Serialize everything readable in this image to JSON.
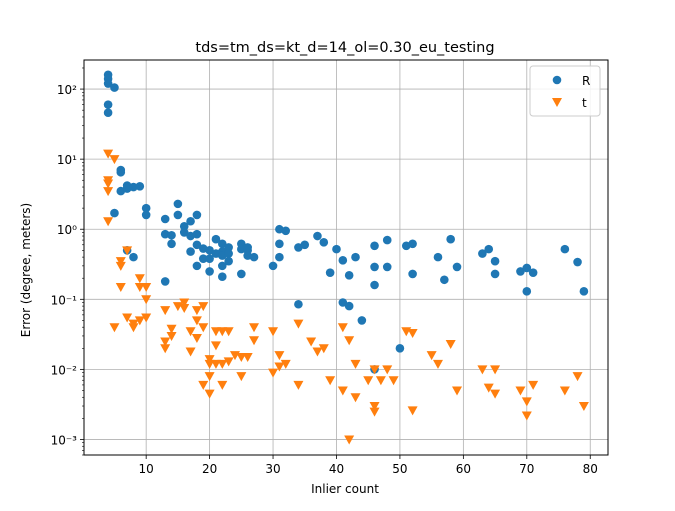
{
  "chart_data": {
    "type": "scatter",
    "title": "tds=tm_ds=kt_d=14_ol=0.30_eu_testing",
    "xlabel": "Inlier count",
    "ylabel": "Error (degree, meters)",
    "xlim": [
      0.2,
      82.8
    ],
    "ylim": [
      0.0006,
      260
    ],
    "yscale": "log",
    "grid": true,
    "legend_position": "upper right",
    "x_ticks": [
      10,
      20,
      30,
      40,
      50,
      60,
      70,
      80
    ],
    "x_tick_labels": [
      "10",
      "20",
      "30",
      "40",
      "50",
      "60",
      "70",
      "80"
    ],
    "y_ticks": [
      0.001,
      0.01,
      0.1,
      1,
      10,
      100
    ],
    "y_tick_labels": [
      "10⁻³",
      "10⁻²",
      "10⁻¹",
      "10⁰",
      "10¹",
      "10²"
    ],
    "series": [
      {
        "name": "R",
        "marker": "circle",
        "color": "#1f77b4",
        "points": [
          [
            4,
            160
          ],
          [
            4,
            140
          ],
          [
            4,
            120
          ],
          [
            4,
            60
          ],
          [
            4,
            46
          ],
          [
            5,
            105
          ],
          [
            5,
            1.7
          ],
          [
            6,
            3.5
          ],
          [
            6,
            7
          ],
          [
            6,
            6.5
          ],
          [
            7,
            4.2
          ],
          [
            7,
            3.8
          ],
          [
            8,
            4.0
          ],
          [
            9,
            4.1
          ],
          [
            8,
            0.4
          ],
          [
            7,
            0.5
          ],
          [
            10,
            2.0
          ],
          [
            10,
            1.6
          ],
          [
            13,
            0.18
          ],
          [
            13,
            1.4
          ],
          [
            13,
            0.85
          ],
          [
            14,
            0.62
          ],
          [
            14,
            0.82
          ],
          [
            15,
            2.3
          ],
          [
            15,
            1.6
          ],
          [
            16,
            0.9
          ],
          [
            16,
            1.1
          ],
          [
            17,
            0.8
          ],
          [
            17,
            1.3
          ],
          [
            17,
            0.48
          ],
          [
            18,
            0.3
          ],
          [
            18,
            0.6
          ],
          [
            18,
            0.85
          ],
          [
            18,
            1.6
          ],
          [
            19,
            0.38
          ],
          [
            19,
            0.53
          ],
          [
            20,
            0.38
          ],
          [
            20,
            0.25
          ],
          [
            20,
            0.5
          ],
          [
            21,
            0.72
          ],
          [
            21,
            0.45
          ],
          [
            22,
            0.62
          ],
          [
            22,
            0.48
          ],
          [
            22,
            0.42
          ],
          [
            22,
            0.3
          ],
          [
            22,
            0.21
          ],
          [
            23,
            0.35
          ],
          [
            23,
            0.55
          ],
          [
            23,
            0.45
          ],
          [
            25,
            0.62
          ],
          [
            25,
            0.52
          ],
          [
            25,
            0.23
          ],
          [
            26,
            0.5
          ],
          [
            26,
            0.55
          ],
          [
            26,
            0.42
          ],
          [
            27,
            0.4
          ],
          [
            30,
            0.3
          ],
          [
            31,
            1.0
          ],
          [
            31,
            0.62
          ],
          [
            31,
            0.4
          ],
          [
            32,
            0.95
          ],
          [
            34,
            0.085
          ],
          [
            34,
            0.55
          ],
          [
            35,
            0.6
          ],
          [
            37,
            0.8
          ],
          [
            38,
            0.65
          ],
          [
            39,
            0.24
          ],
          [
            40,
            0.52
          ],
          [
            41,
            0.36
          ],
          [
            41,
            0.09
          ],
          [
            42,
            0.08
          ],
          [
            42,
            0.22
          ],
          [
            43,
            0.4
          ],
          [
            44,
            0.05
          ],
          [
            46,
            0.58
          ],
          [
            46,
            0.29
          ],
          [
            46,
            0.16
          ],
          [
            46,
            0.01
          ],
          [
            48,
            0.7
          ],
          [
            48,
            0.29
          ],
          [
            50,
            0.02
          ],
          [
            51,
            0.58
          ],
          [
            52,
            0.62
          ],
          [
            52,
            0.23
          ],
          [
            56,
            0.4
          ],
          [
            57,
            0.19
          ],
          [
            58,
            0.72
          ],
          [
            59,
            0.29
          ],
          [
            63,
            0.45
          ],
          [
            64,
            0.52
          ],
          [
            65,
            0.35
          ],
          [
            65,
            0.23
          ],
          [
            69,
            0.25
          ],
          [
            70,
            0.28
          ],
          [
            70,
            0.13
          ],
          [
            71,
            0.24
          ],
          [
            76,
            0.52
          ],
          [
            78,
            0.34
          ],
          [
            79,
            0.13
          ]
        ]
      },
      {
        "name": "t",
        "marker": "triangle-down",
        "color": "#ff7f0e",
        "points": [
          [
            4,
            12
          ],
          [
            4,
            5
          ],
          [
            4,
            4.5
          ],
          [
            4,
            3.5
          ],
          [
            4,
            1.3
          ],
          [
            5,
            10
          ],
          [
            5,
            0.04
          ],
          [
            6,
            0.35
          ],
          [
            6,
            0.3
          ],
          [
            6,
            0.15
          ],
          [
            7,
            0.5
          ],
          [
            7,
            0.055
          ],
          [
            8,
            0.04
          ],
          [
            8,
            0.045
          ],
          [
            9,
            0.05
          ],
          [
            9,
            0.15
          ],
          [
            9,
            0.2
          ],
          [
            10,
            0.15
          ],
          [
            10,
            0.1
          ],
          [
            10,
            0.055
          ],
          [
            13,
            0.07
          ],
          [
            13,
            0.025
          ],
          [
            13,
            0.02
          ],
          [
            14,
            0.03
          ],
          [
            14,
            0.038
          ],
          [
            15,
            0.08
          ],
          [
            16,
            0.09
          ],
          [
            16,
            0.075
          ],
          [
            17,
            0.035
          ],
          [
            17,
            0.018
          ],
          [
            18,
            0.05
          ],
          [
            18,
            0.07
          ],
          [
            18,
            0.028
          ],
          [
            19,
            0.08
          ],
          [
            19,
            0.04
          ],
          [
            19,
            0.006
          ],
          [
            20,
            0.014
          ],
          [
            20,
            0.012
          ],
          [
            20,
            0.008
          ],
          [
            20,
            0.0045
          ],
          [
            21,
            0.035
          ],
          [
            21,
            0.022
          ],
          [
            21,
            0.012
          ],
          [
            22,
            0.035
          ],
          [
            22,
            0.012
          ],
          [
            22,
            0.006
          ],
          [
            23,
            0.035
          ],
          [
            23,
            0.013
          ],
          [
            24,
            0.016
          ],
          [
            25,
            0.015
          ],
          [
            25,
            0.008
          ],
          [
            26,
            0.015
          ],
          [
            27,
            0.04
          ],
          [
            27,
            0.026
          ],
          [
            30,
            0.035
          ],
          [
            30,
            0.009
          ],
          [
            31,
            0.016
          ],
          [
            31,
            0.011
          ],
          [
            32,
            0.012
          ],
          [
            34,
            0.045
          ],
          [
            34,
            0.006
          ],
          [
            36,
            0.025
          ],
          [
            37,
            0.018
          ],
          [
            38,
            0.02
          ],
          [
            39,
            0.007
          ],
          [
            41,
            0.04
          ],
          [
            41,
            0.005
          ],
          [
            42,
            0.026
          ],
          [
            42,
            0.001
          ],
          [
            43,
            0.012
          ],
          [
            43,
            0.004
          ],
          [
            45,
            0.007
          ],
          [
            46,
            0.01
          ],
          [
            46,
            0.003
          ],
          [
            46,
            0.0025
          ],
          [
            47,
            0.007
          ],
          [
            48,
            0.01
          ],
          [
            49,
            0.007
          ],
          [
            51,
            0.035
          ],
          [
            52,
            0.033
          ],
          [
            52,
            0.0026
          ],
          [
            55,
            0.016
          ],
          [
            56,
            0.012
          ],
          [
            58,
            0.023
          ],
          [
            59,
            0.005
          ],
          [
            63,
            0.01
          ],
          [
            64,
            0.0055
          ],
          [
            65,
            0.01
          ],
          [
            65,
            0.0045
          ],
          [
            69,
            0.005
          ],
          [
            70,
            0.0035
          ],
          [
            70,
            0.0022
          ],
          [
            71,
            0.006
          ],
          [
            76,
            0.005
          ],
          [
            78,
            0.008
          ],
          [
            79,
            0.003
          ]
        ]
      }
    ]
  }
}
